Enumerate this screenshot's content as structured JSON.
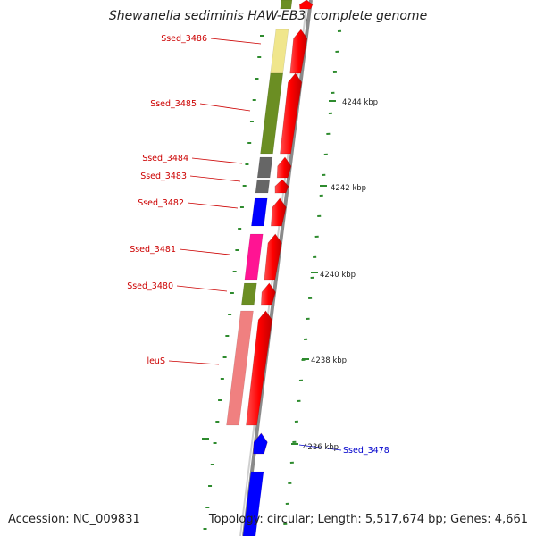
{
  "title": "Shewanella sediminis HAW-EB3, complete genome",
  "accession": "Accession: NC_009831",
  "summary": "Topology: circular; Length: 5,517,674 bp; Genes: 4,661",
  "colors": {
    "cds": "#ff0000",
    "backbone": "#8a8a8a",
    "gc_ticks": "#2e8b2e",
    "label_red": "#cc0000",
    "label_blue": "#0000cc"
  },
  "kbp_ticks": [
    {
      "text": "4244 kbp"
    },
    {
      "text": "4242 kbp"
    },
    {
      "text": "4240 kbp"
    },
    {
      "text": "4238 kbp"
    },
    {
      "text": "4236 kbp"
    }
  ],
  "genes": [
    {
      "name": "Ssed_3486",
      "color": "#f0e68c"
    },
    {
      "name": "Ssed_3485",
      "color": "#6b8e23"
    },
    {
      "name": "Ssed_3484",
      "color": "#666666"
    },
    {
      "name": "Ssed_3483",
      "color": "#666666"
    },
    {
      "name": "Ssed_3482",
      "color": "#0000ff"
    },
    {
      "name": "Ssed_3481",
      "color": "#ff1493"
    },
    {
      "name": "Ssed_3480",
      "color": "#6b8e23"
    },
    {
      "name": "leuS",
      "color": "#f08080"
    },
    {
      "name": "Ssed_3478",
      "color": "#0000ff"
    }
  ]
}
